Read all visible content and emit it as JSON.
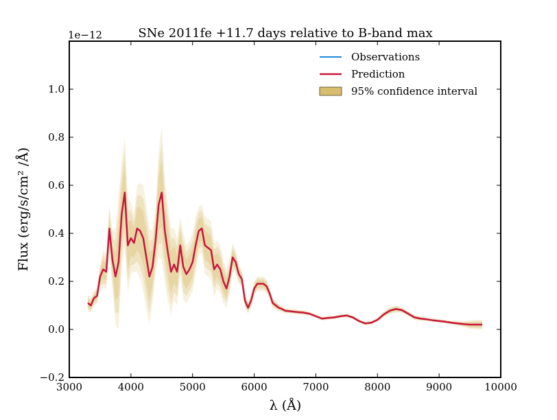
{
  "chart_data": {
    "type": "line",
    "title": "SNe 2011fe +11.7 days relative to B-band max",
    "xlabel": "λ (Å)",
    "ylabel": "Flux (erg/s/cm² /Å)",
    "scale_label": "1e−12",
    "xlim": [
      3000,
      10000
    ],
    "ylim": [
      -0.2,
      1.2
    ],
    "x_ticks": [
      3000,
      4000,
      5000,
      6000,
      7000,
      8000,
      9000,
      10000
    ],
    "y_ticks": [
      -0.2,
      0.0,
      0.2,
      0.4,
      0.6,
      0.8,
      1.0
    ],
    "x_tick_labels": [
      "3000",
      "4000",
      "5000",
      "6000",
      "7000",
      "8000",
      "9000",
      "10000"
    ],
    "y_tick_labels": [
      "−0.2",
      "0.0",
      "0.2",
      "0.4",
      "0.6",
      "0.8",
      "1.0"
    ],
    "legend_position": "top-right",
    "grid": false,
    "legend": {
      "observations": "Observations",
      "prediction": "Prediction",
      "confidence": "95% confidence interval"
    },
    "colors": {
      "observations": "#1f88d6",
      "prediction": "#c8163c",
      "band": "#d9bd6f"
    },
    "series": [
      {
        "name": "Prediction",
        "x": [
          3300,
          3350,
          3400,
          3450,
          3500,
          3550,
          3600,
          3650,
          3700,
          3750,
          3800,
          3850,
          3900,
          3950,
          4000,
          4050,
          4100,
          4150,
          4200,
          4250,
          4300,
          4350,
          4400,
          4450,
          4500,
          4550,
          4600,
          4650,
          4700,
          4750,
          4800,
          4850,
          4900,
          4950,
          5000,
          5050,
          5100,
          5150,
          5200,
          5250,
          5300,
          5350,
          5400,
          5450,
          5500,
          5550,
          5600,
          5650,
          5700,
          5750,
          5800,
          5850,
          5900,
          5950,
          6000,
          6050,
          6100,
          6150,
          6200,
          6250,
          6300,
          6350,
          6400,
          6450,
          6500,
          6600,
          6700,
          6800,
          6900,
          7000,
          7100,
          7200,
          7300,
          7400,
          7500,
          7600,
          7700,
          7800,
          7900,
          8000,
          8100,
          8200,
          8300,
          8400,
          8500,
          8600,
          8700,
          8800,
          8900,
          9000,
          9100,
          9200,
          9300,
          9400,
          9500,
          9600,
          9700
        ],
        "y": [
          0.11,
          0.1,
          0.13,
          0.14,
          0.22,
          0.25,
          0.24,
          0.42,
          0.29,
          0.22,
          0.28,
          0.48,
          0.57,
          0.35,
          0.38,
          0.36,
          0.42,
          0.41,
          0.38,
          0.3,
          0.22,
          0.26,
          0.37,
          0.52,
          0.57,
          0.41,
          0.32,
          0.24,
          0.27,
          0.24,
          0.35,
          0.26,
          0.23,
          0.25,
          0.28,
          0.35,
          0.41,
          0.42,
          0.35,
          0.34,
          0.33,
          0.25,
          0.27,
          0.25,
          0.2,
          0.17,
          0.22,
          0.3,
          0.28,
          0.23,
          0.21,
          0.12,
          0.09,
          0.12,
          0.17,
          0.19,
          0.19,
          0.19,
          0.18,
          0.15,
          0.11,
          0.1,
          0.09,
          0.085,
          0.078,
          0.075,
          0.072,
          0.07,
          0.065,
          0.055,
          0.045,
          0.048,
          0.05,
          0.055,
          0.058,
          0.05,
          0.035,
          0.025,
          0.028,
          0.04,
          0.062,
          0.078,
          0.085,
          0.08,
          0.065,
          0.05,
          0.045,
          0.042,
          0.038,
          0.035,
          0.032,
          0.028,
          0.025,
          0.022,
          0.02,
          0.02,
          0.02
        ]
      }
    ],
    "confidence_half_width": [
      0.035,
      0.03,
      0.03,
      0.035,
      0.05,
      0.08,
      0.07,
      0.1,
      0.12,
      0.2,
      0.28,
      0.22,
      0.23,
      0.2,
      0.15,
      0.12,
      0.18,
      0.2,
      0.22,
      0.22,
      0.2,
      0.15,
      0.14,
      0.22,
      0.28,
      0.22,
      0.2,
      0.18,
      0.15,
      0.14,
      0.12,
      0.14,
      0.12,
      0.12,
      0.12,
      0.12,
      0.1,
      0.1,
      0.12,
      0.12,
      0.12,
      0.11,
      0.1,
      0.1,
      0.09,
      0.08,
      0.07,
      0.06,
      0.05,
      0.04,
      0.035,
      0.03,
      0.025,
      0.03,
      0.03,
      0.03,
      0.03,
      0.03,
      0.028,
      0.025,
      0.02,
      0.018,
      0.015,
      0.012,
      0.01,
      0.01,
      0.01,
      0.01,
      0.008,
      0.008,
      0.008,
      0.008,
      0.008,
      0.008,
      0.008,
      0.008,
      0.008,
      0.008,
      0.008,
      0.008,
      0.012,
      0.015,
      0.015,
      0.012,
      0.01,
      0.01,
      0.01,
      0.008,
      0.008,
      0.008,
      0.008,
      0.008,
      0.01,
      0.012,
      0.018,
      0.02,
      0.02
    ]
  }
}
